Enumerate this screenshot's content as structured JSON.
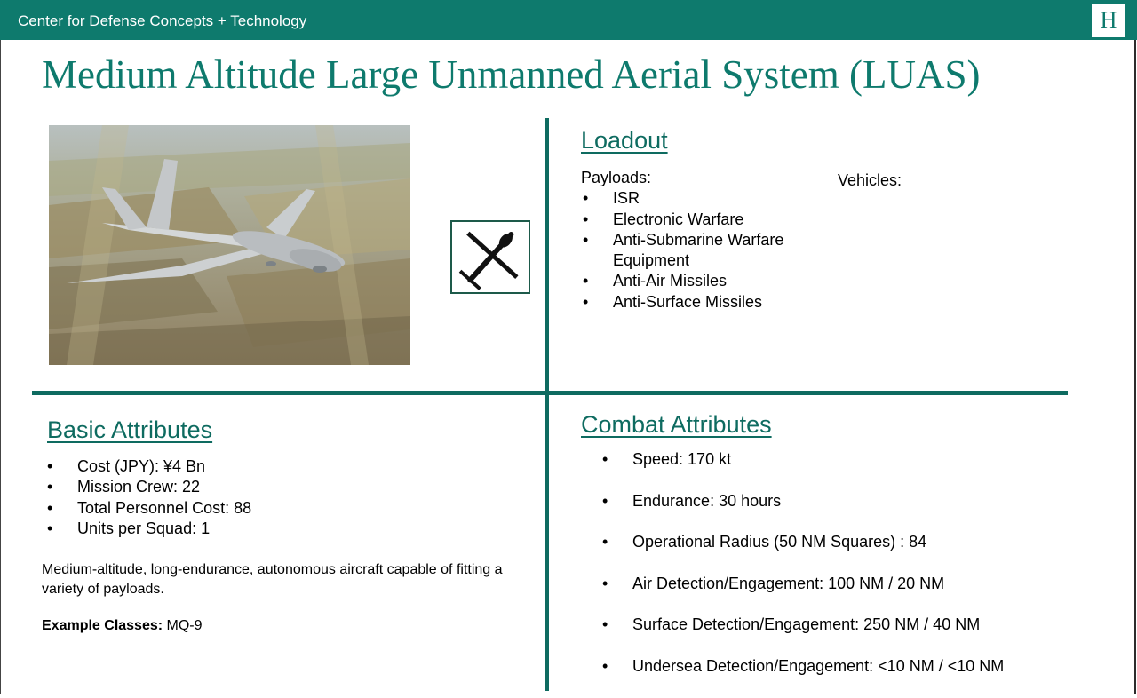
{
  "header": {
    "org_name": "Center for Defense Concepts + Technology",
    "logo_letter": "H"
  },
  "title": "Medium Altitude Large Unmanned Aerial System (LUAS)",
  "loadout": {
    "heading": "Loadout",
    "payloads_label": "Payloads:",
    "payloads": [
      "ISR",
      "Electronic Warfare",
      "Anti-Submarine Warfare Equipment",
      "Anti-Air Missiles",
      "Anti-Surface Missiles"
    ],
    "vehicles_label": "Vehicles:"
  },
  "basic": {
    "heading": "Basic Attributes",
    "items": [
      "Cost (JPY): ¥4 Bn",
      "Mission Crew: 22",
      "Total Personnel Cost: 88",
      "Units per Squad: 1"
    ],
    "description": "Medium-altitude, long-endurance, autonomous aircraft capable of fitting a variety of payloads.",
    "example_label": "Example Classes:",
    "example_value": " MQ-9"
  },
  "combat": {
    "heading": "Combat Attributes",
    "items": [
      "Speed: 170 kt",
      "Endurance: 30 hours",
      "Operational Radius (50 NM Squares) : 84",
      "Air Detection/Engagement: 100 NM / 20 NM",
      "Surface Detection/Engagement: 250 NM / 40 NM",
      "Undersea Detection/Engagement: <10 NM / <10 NM"
    ]
  },
  "icons": {
    "photo": "drone-photo",
    "symbol": "drone-icon"
  },
  "colors": {
    "brand": "#0e7a6d",
    "divider": "#0e6b60"
  }
}
